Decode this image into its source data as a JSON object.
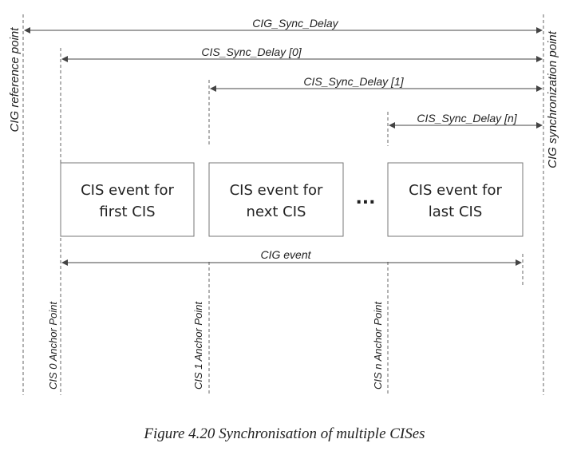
{
  "diagram": {
    "left_label": "CIG reference point",
    "right_label": "CIG synchronization point",
    "arrows": {
      "cig_sync_delay": "CIG_Sync_Delay",
      "cis_sync_delay_0": "CIS_Sync_Delay [0]",
      "cis_sync_delay_1": "CIS_Sync_Delay [1]",
      "cis_sync_delay_n": "CIS_Sync_Delay [n]",
      "cig_event": "CIG event"
    },
    "boxes": [
      {
        "line1": "CIS event for",
        "line2": "first CIS"
      },
      {
        "line1": "CIS event for",
        "line2": "next CIS"
      },
      {
        "line1": "CIS event for",
        "line2": "last CIS"
      }
    ],
    "ellipsis": "...",
    "anchors": {
      "cis0": "CIS 0 Anchor Point",
      "cis1": "CIS 1 Anchor Point",
      "cisn": "CIS n Anchor Point"
    }
  },
  "caption": "Figure 4.20  Synchronisation of multiple CISes"
}
